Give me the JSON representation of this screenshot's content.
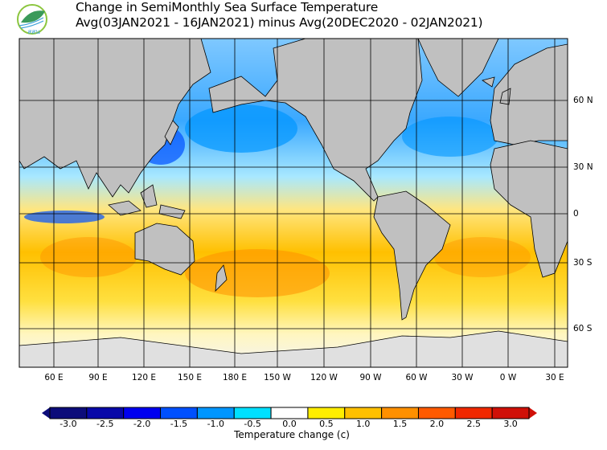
{
  "header": {
    "title_line1": "Change in SemiMonthly Sea Surface Temperature",
    "title_line2": "Avg(03JAN2021 - 16JAN2021) minus Avg(20DEC2020 - 02JAN2021)",
    "logo_text": "สสน"
  },
  "map": {
    "lon_labels": [
      "60 E",
      "90 E",
      "120 E",
      "150 E",
      "180 E",
      "150 W",
      "120 W",
      "90 W",
      "60 W",
      "30 W",
      "0 W",
      "30 E"
    ],
    "lat_labels": [
      "60 N",
      "30 N",
      "0",
      "30 S",
      "60 S"
    ],
    "land_color": "#c0c0c0",
    "ice_color": "#e0e0e0"
  },
  "colorbar": {
    "title": "Temperature change  (c)",
    "labels": [
      "-3.0",
      "-2.5",
      "-2.0",
      "-1.5",
      "-1.0",
      "-0.5",
      "0.0",
      "0.5",
      "1.0",
      "1.5",
      "2.0",
      "2.5",
      "3.0"
    ],
    "colors": [
      "#0c0c7a",
      "#0808a8",
      "#0000f0",
      "#0050ff",
      "#0096ff",
      "#00e0ff",
      "#ffffff",
      "#ffee00",
      "#ffc000",
      "#ff9000",
      "#ff5a00",
      "#f02800",
      "#d01008"
    ]
  }
}
